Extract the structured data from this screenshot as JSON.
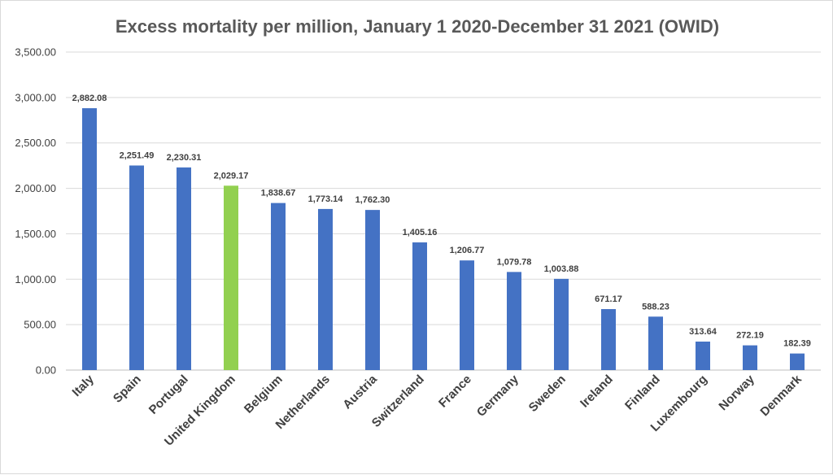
{
  "chart_data": {
    "type": "bar",
    "title": "Excess mortality per million, January 1 2020-December 31 2021 (OWID)",
    "xlabel": "",
    "ylabel": "",
    "ylim": [
      0,
      3500
    ],
    "y_ticks": [
      "0.00",
      "500.00",
      "1,000.00",
      "1,500.00",
      "2,000.00",
      "2,500.00",
      "3,000.00",
      "3,500.00"
    ],
    "y_tick_values": [
      0,
      500,
      1000,
      1500,
      2000,
      2500,
      3000,
      3500
    ],
    "grid": true,
    "legend": "none",
    "categories": [
      "Italy",
      "Spain",
      "Portugal",
      "United Kingdom",
      "Belgium",
      "Netherlands",
      "Austria",
      "Switzerland",
      "France",
      "Germany",
      "Sweden",
      "Ireland",
      "Finland",
      "Luxembourg",
      "Norway",
      "Denmark"
    ],
    "values": [
      2882.08,
      2251.49,
      2230.31,
      2029.17,
      1838.67,
      1773.14,
      1762.3,
      1405.16,
      1206.77,
      1079.78,
      1003.88,
      671.17,
      588.23,
      313.64,
      272.19,
      182.39
    ],
    "data_labels": [
      "2,882.08",
      "2,251.49",
      "2,230.31",
      "2,029.17",
      "1,838.67",
      "1,773.14",
      "1,762.30",
      "1,405.16",
      "1,206.77",
      "1,079.78",
      "1,003.88",
      "671.17",
      "588.23",
      "313.64",
      "272.19",
      "182.39"
    ],
    "colors": {
      "default": "#4472c4",
      "highlight": "#92d050",
      "highlight_category": "United Kingdom"
    }
  }
}
